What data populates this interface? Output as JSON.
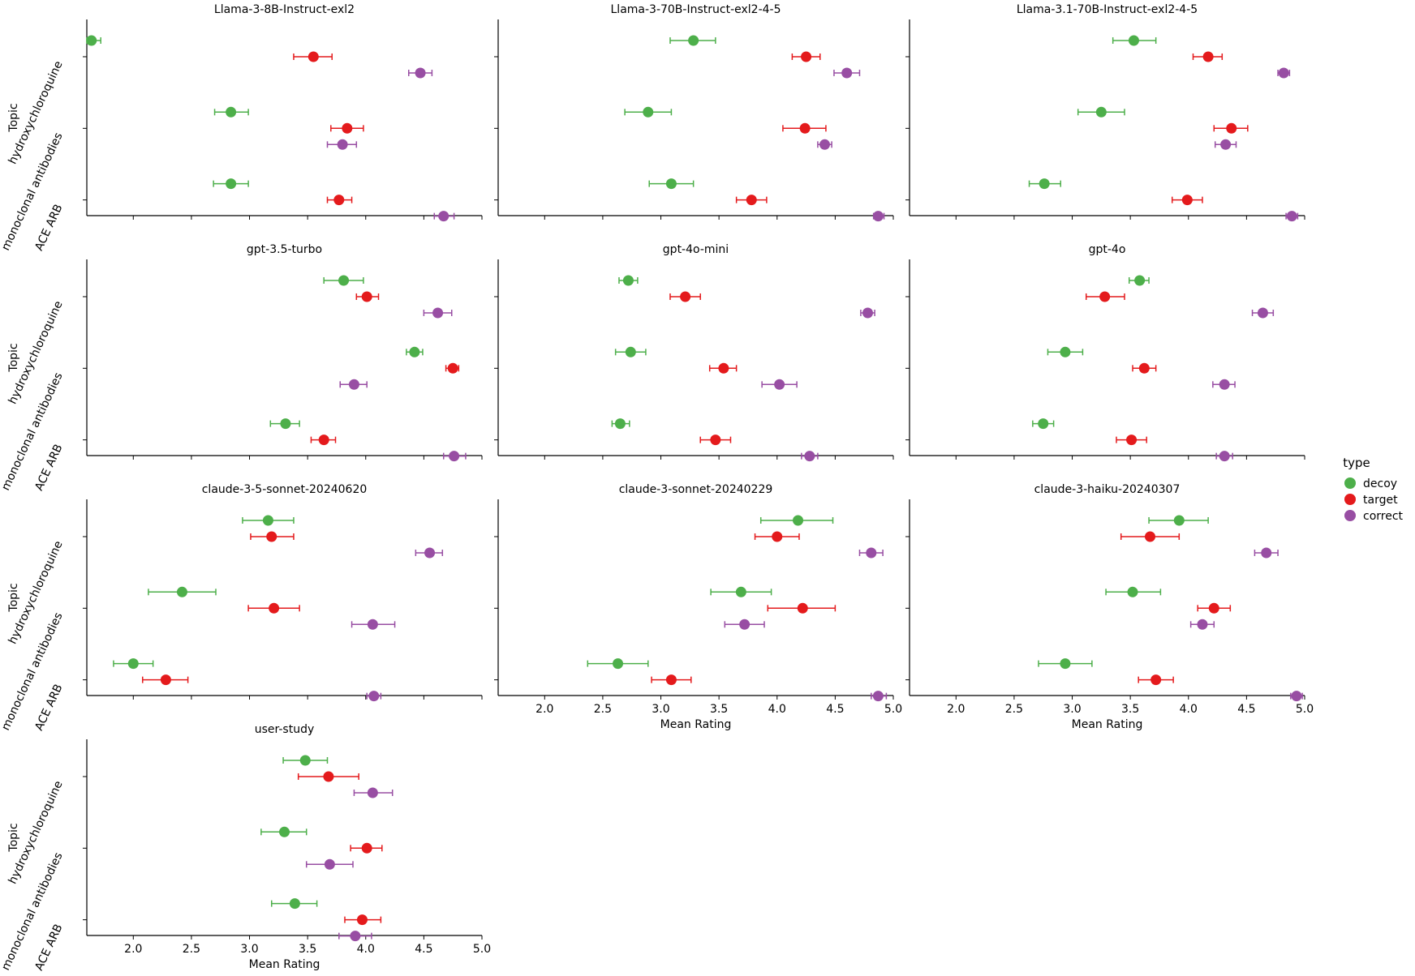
{
  "axis": {
    "xlabel": "Mean Rating",
    "ylabel": "Topic",
    "xlim": [
      1.6,
      5.0
    ],
    "xticks": [
      2.0,
      2.5,
      3.0,
      3.5,
      4.0,
      4.5,
      5.0
    ],
    "xtick_labels": [
      "2.0",
      "2.5",
      "3.0",
      "3.5",
      "4.0",
      "4.5",
      "5.0"
    ],
    "topics": [
      "hydroxychloroquine",
      "monoclonal antibodies",
      "ACE ARB"
    ]
  },
  "legend": {
    "title": "type",
    "placement": "center-right",
    "entries": [
      {
        "name": "decoy",
        "color": "#4daf4a"
      },
      {
        "name": "target",
        "color": "#e41a1c"
      },
      {
        "name": "correct",
        "color": "#984ea3"
      }
    ]
  },
  "chart_data": [
    {
      "type": "scatter",
      "title": "Llama-3-8B-Instruct-exl2",
      "points": [
        {
          "topic": "hydroxychloroquine",
          "type": "decoy",
          "mean": 1.64,
          "lo": 1.6,
          "hi": 1.72
        },
        {
          "topic": "hydroxychloroquine",
          "type": "target",
          "mean": 3.55,
          "lo": 3.38,
          "hi": 3.71
        },
        {
          "topic": "hydroxychloroquine",
          "type": "correct",
          "mean": 4.47,
          "lo": 4.37,
          "hi": 4.57
        },
        {
          "topic": "monoclonal antibodies",
          "type": "decoy",
          "mean": 2.84,
          "lo": 2.7,
          "hi": 2.99
        },
        {
          "topic": "monoclonal antibodies",
          "type": "target",
          "mean": 3.84,
          "lo": 3.7,
          "hi": 3.98
        },
        {
          "topic": "monoclonal antibodies",
          "type": "correct",
          "mean": 3.8,
          "lo": 3.67,
          "hi": 3.92
        },
        {
          "topic": "ACE ARB",
          "type": "decoy",
          "mean": 2.84,
          "lo": 2.69,
          "hi": 2.99
        },
        {
          "topic": "ACE ARB",
          "type": "target",
          "mean": 3.77,
          "lo": 3.67,
          "hi": 3.88
        },
        {
          "topic": "ACE ARB",
          "type": "correct",
          "mean": 4.67,
          "lo": 4.59,
          "hi": 4.76
        }
      ]
    },
    {
      "type": "scatter",
      "title": "Llama-3-70B-Instruct-exl2-4-5",
      "points": [
        {
          "topic": "hydroxychloroquine",
          "type": "decoy",
          "mean": 3.28,
          "lo": 3.08,
          "hi": 3.47
        },
        {
          "topic": "hydroxychloroquine",
          "type": "target",
          "mean": 4.25,
          "lo": 4.13,
          "hi": 4.37
        },
        {
          "topic": "hydroxychloroquine",
          "type": "correct",
          "mean": 4.6,
          "lo": 4.49,
          "hi": 4.71
        },
        {
          "topic": "monoclonal antibodies",
          "type": "decoy",
          "mean": 2.89,
          "lo": 2.69,
          "hi": 3.09
        },
        {
          "topic": "monoclonal antibodies",
          "type": "target",
          "mean": 4.24,
          "lo": 4.05,
          "hi": 4.42
        },
        {
          "topic": "monoclonal antibodies",
          "type": "correct",
          "mean": 4.41,
          "lo": 4.35,
          "hi": 4.47
        },
        {
          "topic": "ACE ARB",
          "type": "decoy",
          "mean": 3.09,
          "lo": 2.9,
          "hi": 3.28
        },
        {
          "topic": "ACE ARB",
          "type": "target",
          "mean": 3.78,
          "lo": 3.65,
          "hi": 3.91
        },
        {
          "topic": "ACE ARB",
          "type": "correct",
          "mean": 4.87,
          "lo": 4.83,
          "hi": 4.92
        }
      ]
    },
    {
      "type": "scatter",
      "title": "Llama-3.1-70B-Instruct-exl2-4-5",
      "points": [
        {
          "topic": "hydroxychloroquine",
          "type": "decoy",
          "mean": 3.53,
          "lo": 3.35,
          "hi": 3.72
        },
        {
          "topic": "hydroxychloroquine",
          "type": "target",
          "mean": 4.17,
          "lo": 4.04,
          "hi": 4.29
        },
        {
          "topic": "hydroxychloroquine",
          "type": "correct",
          "mean": 4.82,
          "lo": 4.77,
          "hi": 4.87
        },
        {
          "topic": "monoclonal antibodies",
          "type": "decoy",
          "mean": 3.25,
          "lo": 3.05,
          "hi": 3.45
        },
        {
          "topic": "monoclonal antibodies",
          "type": "target",
          "mean": 4.37,
          "lo": 4.22,
          "hi": 4.51
        },
        {
          "topic": "monoclonal antibodies",
          "type": "correct",
          "mean": 4.32,
          "lo": 4.23,
          "hi": 4.41
        },
        {
          "topic": "ACE ARB",
          "type": "decoy",
          "mean": 2.76,
          "lo": 2.63,
          "hi": 2.9
        },
        {
          "topic": "ACE ARB",
          "type": "target",
          "mean": 3.99,
          "lo": 3.86,
          "hi": 4.12
        },
        {
          "topic": "ACE ARB",
          "type": "correct",
          "mean": 4.89,
          "lo": 4.84,
          "hi": 4.94
        }
      ]
    },
    {
      "type": "scatter",
      "title": "gpt-3.5-turbo",
      "points": [
        {
          "topic": "hydroxychloroquine",
          "type": "decoy",
          "mean": 3.81,
          "lo": 3.64,
          "hi": 3.98
        },
        {
          "topic": "hydroxychloroquine",
          "type": "target",
          "mean": 4.01,
          "lo": 3.92,
          "hi": 4.11
        },
        {
          "topic": "hydroxychloroquine",
          "type": "correct",
          "mean": 4.62,
          "lo": 4.5,
          "hi": 4.74
        },
        {
          "topic": "monoclonal antibodies",
          "type": "decoy",
          "mean": 4.42,
          "lo": 4.35,
          "hi": 4.49
        },
        {
          "topic": "monoclonal antibodies",
          "type": "target",
          "mean": 4.75,
          "lo": 4.69,
          "hi": 4.8
        },
        {
          "topic": "monoclonal antibodies",
          "type": "correct",
          "mean": 3.9,
          "lo": 3.78,
          "hi": 4.01
        },
        {
          "topic": "ACE ARB",
          "type": "decoy",
          "mean": 3.31,
          "lo": 3.18,
          "hi": 3.43
        },
        {
          "topic": "ACE ARB",
          "type": "target",
          "mean": 3.64,
          "lo": 3.53,
          "hi": 3.74
        },
        {
          "topic": "ACE ARB",
          "type": "correct",
          "mean": 4.76,
          "lo": 4.67,
          "hi": 4.86
        }
      ]
    },
    {
      "type": "scatter",
      "title": "gpt-4o-mini",
      "points": [
        {
          "topic": "hydroxychloroquine",
          "type": "decoy",
          "mean": 2.72,
          "lo": 2.64,
          "hi": 2.8
        },
        {
          "topic": "hydroxychloroquine",
          "type": "target",
          "mean": 3.21,
          "lo": 3.08,
          "hi": 3.34
        },
        {
          "topic": "hydroxychloroquine",
          "type": "correct",
          "mean": 4.78,
          "lo": 4.72,
          "hi": 4.84
        },
        {
          "topic": "monoclonal antibodies",
          "type": "decoy",
          "mean": 2.74,
          "lo": 2.61,
          "hi": 2.87
        },
        {
          "topic": "monoclonal antibodies",
          "type": "target",
          "mean": 3.54,
          "lo": 3.42,
          "hi": 3.65
        },
        {
          "topic": "monoclonal antibodies",
          "type": "correct",
          "mean": 4.02,
          "lo": 3.87,
          "hi": 4.17
        },
        {
          "topic": "ACE ARB",
          "type": "decoy",
          "mean": 2.65,
          "lo": 2.58,
          "hi": 2.73
        },
        {
          "topic": "ACE ARB",
          "type": "target",
          "mean": 3.47,
          "lo": 3.34,
          "hi": 3.6
        },
        {
          "topic": "ACE ARB",
          "type": "correct",
          "mean": 4.28,
          "lo": 4.21,
          "hi": 4.35
        }
      ]
    },
    {
      "type": "scatter",
      "title": "gpt-4o",
      "points": [
        {
          "topic": "hydroxychloroquine",
          "type": "decoy",
          "mean": 3.58,
          "lo": 3.49,
          "hi": 3.66
        },
        {
          "topic": "hydroxychloroquine",
          "type": "target",
          "mean": 3.28,
          "lo": 3.12,
          "hi": 3.45
        },
        {
          "topic": "hydroxychloroquine",
          "type": "correct",
          "mean": 4.64,
          "lo": 4.55,
          "hi": 4.73
        },
        {
          "topic": "monoclonal antibodies",
          "type": "decoy",
          "mean": 2.94,
          "lo": 2.79,
          "hi": 3.09
        },
        {
          "topic": "monoclonal antibodies",
          "type": "target",
          "mean": 3.62,
          "lo": 3.52,
          "hi": 3.72
        },
        {
          "topic": "monoclonal antibodies",
          "type": "correct",
          "mean": 4.31,
          "lo": 4.21,
          "hi": 4.4
        },
        {
          "topic": "ACE ARB",
          "type": "decoy",
          "mean": 2.75,
          "lo": 2.66,
          "hi": 2.84
        },
        {
          "topic": "ACE ARB",
          "type": "target",
          "mean": 3.51,
          "lo": 3.38,
          "hi": 3.64
        },
        {
          "topic": "ACE ARB",
          "type": "correct",
          "mean": 4.31,
          "lo": 4.24,
          "hi": 4.38
        }
      ]
    },
    {
      "type": "scatter",
      "title": "claude-3-5-sonnet-20240620",
      "points": [
        {
          "topic": "hydroxychloroquine",
          "type": "decoy",
          "mean": 3.16,
          "lo": 2.94,
          "hi": 3.38
        },
        {
          "topic": "hydroxychloroquine",
          "type": "target",
          "mean": 3.19,
          "lo": 3.01,
          "hi": 3.38
        },
        {
          "topic": "hydroxychloroquine",
          "type": "correct",
          "mean": 4.55,
          "lo": 4.43,
          "hi": 4.66
        },
        {
          "topic": "monoclonal antibodies",
          "type": "decoy",
          "mean": 2.42,
          "lo": 2.13,
          "hi": 2.71
        },
        {
          "topic": "monoclonal antibodies",
          "type": "target",
          "mean": 3.21,
          "lo": 2.99,
          "hi": 3.43
        },
        {
          "topic": "monoclonal antibodies",
          "type": "correct",
          "mean": 4.06,
          "lo": 3.88,
          "hi": 4.25
        },
        {
          "topic": "ACE ARB",
          "type": "decoy",
          "mean": 2.0,
          "lo": 1.83,
          "hi": 2.17
        },
        {
          "topic": "ACE ARB",
          "type": "target",
          "mean": 2.28,
          "lo": 2.08,
          "hi": 2.47
        },
        {
          "topic": "ACE ARB",
          "type": "correct",
          "mean": 4.07,
          "lo": 4.01,
          "hi": 4.13
        }
      ]
    },
    {
      "type": "scatter",
      "title": "claude-3-sonnet-20240229",
      "points": [
        {
          "topic": "hydroxychloroquine",
          "type": "decoy",
          "mean": 4.18,
          "lo": 3.86,
          "hi": 4.48
        },
        {
          "topic": "hydroxychloroquine",
          "type": "target",
          "mean": 4.0,
          "lo": 3.81,
          "hi": 4.19
        },
        {
          "topic": "hydroxychloroquine",
          "type": "correct",
          "mean": 4.81,
          "lo": 4.71,
          "hi": 4.91
        },
        {
          "topic": "monoclonal antibodies",
          "type": "decoy",
          "mean": 3.69,
          "lo": 3.43,
          "hi": 3.95
        },
        {
          "topic": "monoclonal antibodies",
          "type": "target",
          "mean": 4.22,
          "lo": 3.92,
          "hi": 4.5
        },
        {
          "topic": "monoclonal antibodies",
          "type": "correct",
          "mean": 3.72,
          "lo": 3.55,
          "hi": 3.89
        },
        {
          "topic": "ACE ARB",
          "type": "decoy",
          "mean": 2.63,
          "lo": 2.37,
          "hi": 2.89
        },
        {
          "topic": "ACE ARB",
          "type": "target",
          "mean": 3.09,
          "lo": 2.92,
          "hi": 3.26
        },
        {
          "topic": "ACE ARB",
          "type": "correct",
          "mean": 4.87,
          "lo": 4.81,
          "hi": 4.94
        }
      ]
    },
    {
      "type": "scatter",
      "title": "claude-3-haiku-20240307",
      "points": [
        {
          "topic": "hydroxychloroquine",
          "type": "decoy",
          "mean": 3.92,
          "lo": 3.66,
          "hi": 4.17
        },
        {
          "topic": "hydroxychloroquine",
          "type": "target",
          "mean": 3.67,
          "lo": 3.42,
          "hi": 3.92
        },
        {
          "topic": "hydroxychloroquine",
          "type": "correct",
          "mean": 4.67,
          "lo": 4.57,
          "hi": 4.77
        },
        {
          "topic": "monoclonal antibodies",
          "type": "decoy",
          "mean": 3.52,
          "lo": 3.29,
          "hi": 3.76
        },
        {
          "topic": "monoclonal antibodies",
          "type": "target",
          "mean": 4.22,
          "lo": 4.08,
          "hi": 4.36
        },
        {
          "topic": "monoclonal antibodies",
          "type": "correct",
          "mean": 4.12,
          "lo": 4.02,
          "hi": 4.22
        },
        {
          "topic": "ACE ARB",
          "type": "decoy",
          "mean": 2.94,
          "lo": 2.71,
          "hi": 3.17
        },
        {
          "topic": "ACE ARB",
          "type": "target",
          "mean": 3.72,
          "lo": 3.57,
          "hi": 3.87
        },
        {
          "topic": "ACE ARB",
          "type": "correct",
          "mean": 4.93,
          "lo": 4.88,
          "hi": 4.98
        }
      ]
    },
    {
      "type": "scatter",
      "title": "user-study",
      "points": [
        {
          "topic": "hydroxychloroquine",
          "type": "decoy",
          "mean": 3.48,
          "lo": 3.29,
          "hi": 3.67
        },
        {
          "topic": "hydroxychloroquine",
          "type": "target",
          "mean": 3.68,
          "lo": 3.42,
          "hi": 3.94
        },
        {
          "topic": "hydroxychloroquine",
          "type": "correct",
          "mean": 4.06,
          "lo": 3.9,
          "hi": 4.23
        },
        {
          "topic": "monoclonal antibodies",
          "type": "decoy",
          "mean": 3.3,
          "lo": 3.1,
          "hi": 3.49
        },
        {
          "topic": "monoclonal antibodies",
          "type": "target",
          "mean": 4.01,
          "lo": 3.87,
          "hi": 4.14
        },
        {
          "topic": "monoclonal antibodies",
          "type": "correct",
          "mean": 3.69,
          "lo": 3.49,
          "hi": 3.89
        },
        {
          "topic": "ACE ARB",
          "type": "decoy",
          "mean": 3.39,
          "lo": 3.19,
          "hi": 3.58
        },
        {
          "topic": "ACE ARB",
          "type": "target",
          "mean": 3.97,
          "lo": 3.82,
          "hi": 4.13
        },
        {
          "topic": "ACE ARB",
          "type": "correct",
          "mean": 3.91,
          "lo": 3.77,
          "hi": 4.05
        }
      ]
    }
  ]
}
